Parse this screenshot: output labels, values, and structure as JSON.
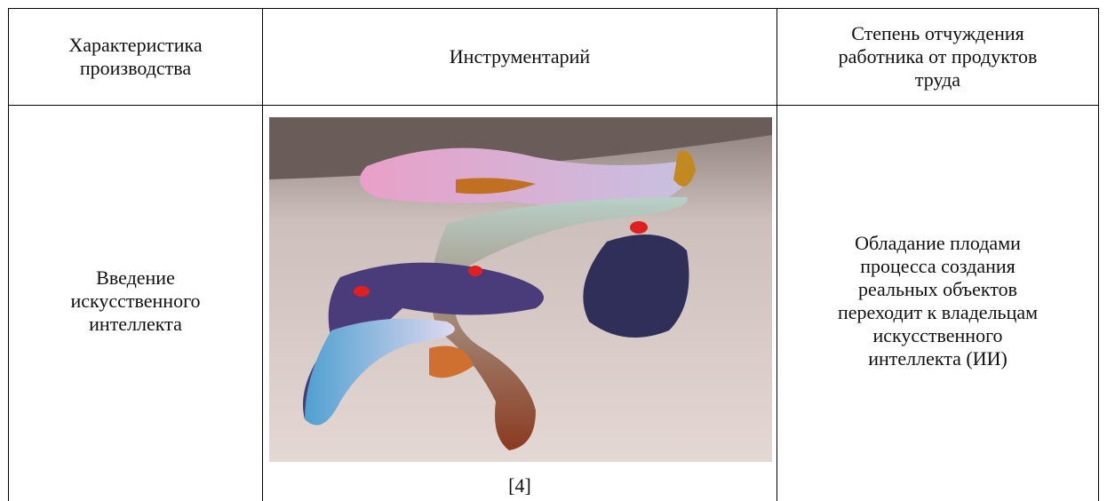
{
  "table": {
    "header": [
      {
        "lines": [
          "Характеристика",
          "производства"
        ]
      },
      {
        "lines": [
          "Инструментарий"
        ]
      },
      {
        "lines": [
          "Степень отчуждения",
          "работника от продуктов",
          "труда"
        ]
      }
    ],
    "rows": [
      [
        {
          "lines": [
            "Введение",
            "искусственного",
            "интеллекта"
          ]
        },
        {
          "caption": "[4]"
        },
        {
          "lines": [
            "Обладание плодами",
            "процесса создания",
            "реальных объектов",
            "переходит к владельцам",
            "искусственного",
            "интеллекта (ИИ)"
          ]
        }
      ]
    ]
  }
}
